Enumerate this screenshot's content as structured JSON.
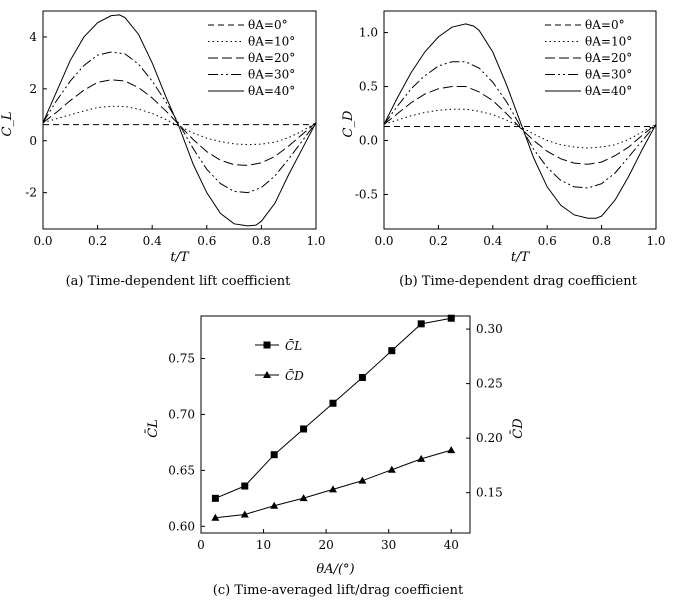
{
  "chart_data": [
    {
      "type": "line",
      "caption": "(a) Time-dependent lift coefficient",
      "xlabel": "t/T",
      "ylabel": "C_L",
      "xlim": [
        0,
        1.0
      ],
      "ylim": [
        -3.4,
        5.0
      ],
      "xticks": [
        "0.0",
        "0.2",
        "0.4",
        "0.6",
        "0.8",
        "1.0"
      ],
      "yticks": [
        "-2",
        "0",
        "2",
        "4"
      ],
      "legend_position": "top-right",
      "series": [
        {
          "name": "θA=0°",
          "dash": "6,4",
          "x": [
            0,
            0.05,
            0.1,
            0.15,
            0.2,
            0.25,
            0.3,
            0.35,
            0.4,
            0.45,
            0.5,
            0.55,
            0.6,
            0.65,
            0.7,
            0.75,
            0.8,
            0.85,
            0.9,
            0.95,
            1.0
          ],
          "y": [
            0.62,
            0.62,
            0.62,
            0.62,
            0.62,
            0.62,
            0.62,
            0.62,
            0.62,
            0.62,
            0.62,
            0.62,
            0.62,
            0.62,
            0.62,
            0.62,
            0.62,
            0.62,
            0.62,
            0.62,
            0.62
          ]
        },
        {
          "name": "θA=10°",
          "dash": "1.5,3",
          "x": [
            0,
            0.05,
            0.1,
            0.15,
            0.2,
            0.25,
            0.3,
            0.35,
            0.4,
            0.45,
            0.5,
            0.55,
            0.6,
            0.65,
            0.7,
            0.75,
            0.8,
            0.85,
            0.9,
            0.95,
            1.0
          ],
          "y": [
            0.7,
            0.85,
            1.0,
            1.15,
            1.28,
            1.33,
            1.32,
            1.22,
            1.05,
            0.82,
            0.56,
            0.3,
            0.1,
            -0.03,
            -0.12,
            -0.15,
            -0.13,
            -0.05,
            0.12,
            0.38,
            0.7
          ]
        },
        {
          "name": "θA=20°",
          "dash": "10,4",
          "x": [
            0,
            0.05,
            0.1,
            0.15,
            0.2,
            0.25,
            0.3,
            0.35,
            0.4,
            0.45,
            0.5,
            0.55,
            0.6,
            0.65,
            0.7,
            0.75,
            0.8,
            0.85,
            0.9,
            0.95,
            1.0
          ],
          "y": [
            0.7,
            1.1,
            1.55,
            1.95,
            2.25,
            2.35,
            2.3,
            2.05,
            1.65,
            1.15,
            0.6,
            0.05,
            -0.42,
            -0.75,
            -0.92,
            -0.95,
            -0.85,
            -0.6,
            -0.2,
            0.25,
            0.7
          ]
        },
        {
          "name": "θA=30°",
          "dash": "10,3,2,3,2,3",
          "x": [
            0,
            0.05,
            0.1,
            0.15,
            0.2,
            0.25,
            0.3,
            0.35,
            0.4,
            0.45,
            0.5,
            0.55,
            0.6,
            0.65,
            0.7,
            0.75,
            0.8,
            0.85,
            0.9,
            0.95,
            1.0
          ],
          "y": [
            0.7,
            1.55,
            2.3,
            2.9,
            3.3,
            3.42,
            3.35,
            2.95,
            2.3,
            1.5,
            0.62,
            -0.3,
            -1.1,
            -1.65,
            -1.95,
            -2.0,
            -1.8,
            -1.35,
            -0.7,
            0.0,
            0.7
          ]
        },
        {
          "name": "θA=40°",
          "dash": "",
          "x": [
            0,
            0.05,
            0.1,
            0.15,
            0.2,
            0.25,
            0.28,
            0.3,
            0.35,
            0.4,
            0.45,
            0.5,
            0.55,
            0.6,
            0.65,
            0.7,
            0.75,
            0.78,
            0.8,
            0.85,
            0.9,
            0.95,
            1.0
          ],
          "y": [
            0.7,
            1.9,
            3.1,
            4.0,
            4.55,
            4.82,
            4.85,
            4.75,
            4.1,
            3.0,
            1.7,
            0.5,
            -0.9,
            -2.0,
            -2.8,
            -3.2,
            -3.28,
            -3.25,
            -3.1,
            -2.4,
            -1.3,
            -0.3,
            0.7
          ]
        }
      ]
    },
    {
      "type": "line",
      "caption": "(b) Time-dependent drag coefficient",
      "xlabel": "t/T",
      "ylabel": "C_D",
      "xlim": [
        0,
        1.0
      ],
      "ylim": [
        -0.82,
        1.2
      ],
      "xticks": [
        "0.0",
        "0.2",
        "0.4",
        "0.6",
        "0.8",
        "1.0"
      ],
      "yticks": [
        "-0.5",
        "0.0",
        "0.5",
        "1.0"
      ],
      "legend_position": "top-right",
      "series": [
        {
          "name": "θA=0°",
          "dash": "6,4",
          "x": [
            0,
            0.05,
            0.1,
            0.15,
            0.2,
            0.25,
            0.3,
            0.35,
            0.4,
            0.45,
            0.5,
            0.55,
            0.6,
            0.65,
            0.7,
            0.75,
            0.8,
            0.85,
            0.9,
            0.95,
            1.0
          ],
          "y": [
            0.13,
            0.13,
            0.13,
            0.13,
            0.13,
            0.13,
            0.13,
            0.13,
            0.13,
            0.13,
            0.13,
            0.13,
            0.13,
            0.13,
            0.13,
            0.13,
            0.13,
            0.13,
            0.13,
            0.13,
            0.13
          ]
        },
        {
          "name": "θA=10°",
          "dash": "1.5,3",
          "x": [
            0,
            0.05,
            0.1,
            0.15,
            0.2,
            0.25,
            0.3,
            0.35,
            0.4,
            0.45,
            0.5,
            0.55,
            0.6,
            0.65,
            0.7,
            0.75,
            0.8,
            0.85,
            0.9,
            0.95,
            1.0
          ],
          "y": [
            0.15,
            0.19,
            0.23,
            0.26,
            0.28,
            0.29,
            0.29,
            0.27,
            0.24,
            0.19,
            0.13,
            0.06,
            0.0,
            -0.04,
            -0.06,
            -0.07,
            -0.06,
            -0.04,
            0.01,
            0.08,
            0.15
          ]
        },
        {
          "name": "θA=20°",
          "dash": "10,4",
          "x": [
            0,
            0.05,
            0.1,
            0.15,
            0.2,
            0.25,
            0.3,
            0.35,
            0.4,
            0.45,
            0.5,
            0.55,
            0.6,
            0.65,
            0.7,
            0.75,
            0.8,
            0.85,
            0.9,
            0.95,
            1.0
          ],
          "y": [
            0.15,
            0.25,
            0.35,
            0.43,
            0.48,
            0.5,
            0.5,
            0.45,
            0.37,
            0.25,
            0.12,
            0.0,
            -0.1,
            -0.17,
            -0.21,
            -0.22,
            -0.2,
            -0.14,
            -0.06,
            0.05,
            0.15
          ]
        },
        {
          "name": "θA=30°",
          "dash": "10,3,2,3,2,3",
          "x": [
            0,
            0.05,
            0.1,
            0.15,
            0.2,
            0.25,
            0.3,
            0.35,
            0.4,
            0.45,
            0.5,
            0.55,
            0.6,
            0.65,
            0.7,
            0.75,
            0.8,
            0.85,
            0.9,
            0.95,
            1.0
          ],
          "y": [
            0.15,
            0.32,
            0.48,
            0.6,
            0.69,
            0.73,
            0.73,
            0.67,
            0.54,
            0.36,
            0.14,
            -0.08,
            -0.25,
            -0.37,
            -0.43,
            -0.44,
            -0.4,
            -0.3,
            -0.15,
            0.0,
            0.15
          ]
        },
        {
          "name": "θA=40°",
          "dash": "",
          "x": [
            0,
            0.05,
            0.1,
            0.15,
            0.2,
            0.25,
            0.3,
            0.33,
            0.35,
            0.4,
            0.45,
            0.5,
            0.55,
            0.6,
            0.65,
            0.7,
            0.75,
            0.78,
            0.8,
            0.85,
            0.9,
            0.95,
            1.0
          ],
          "y": [
            0.15,
            0.4,
            0.63,
            0.82,
            0.96,
            1.05,
            1.08,
            1.06,
            1.02,
            0.82,
            0.52,
            0.18,
            -0.16,
            -0.43,
            -0.6,
            -0.69,
            -0.72,
            -0.72,
            -0.7,
            -0.55,
            -0.33,
            -0.08,
            0.15
          ]
        }
      ]
    },
    {
      "type": "line",
      "caption": "(c) Time-averaged lift/drag coefficient",
      "xlabel": "θA/(°)",
      "ylabel": "C̄L",
      "ylabel_right": "C̄D",
      "xlim": [
        0,
        43
      ],
      "ylim": [
        0.594,
        0.788
      ],
      "ylim_right": [
        0.113,
        0.312
      ],
      "xticks": [
        "0",
        "10",
        "20",
        "30",
        "40"
      ],
      "yticks": [
        "0.60",
        "0.65",
        "0.70",
        "0.75"
      ],
      "yticks_right": [
        "0.15",
        "0.20",
        "0.25",
        "0.30"
      ],
      "legend_position": "top-left",
      "series": [
        {
          "name": "C̄L",
          "marker": "square",
          "axis": "left",
          "x": [
            2.3,
            7,
            11.7,
            16.4,
            21.1,
            25.8,
            30.5,
            35.2,
            40
          ],
          "y": [
            0.625,
            0.636,
            0.664,
            0.687,
            0.71,
            0.733,
            0.757,
            0.781,
            0.786
          ]
        },
        {
          "name": "C̄D",
          "marker": "triangle",
          "axis": "right",
          "x": [
            2.3,
            7,
            11.7,
            16.4,
            21.1,
            25.8,
            30.5,
            35.2,
            40
          ],
          "y": [
            0.127,
            0.13,
            0.138,
            0.145,
            0.153,
            0.161,
            0.171,
            0.181,
            0.189
          ]
        }
      ]
    }
  ]
}
